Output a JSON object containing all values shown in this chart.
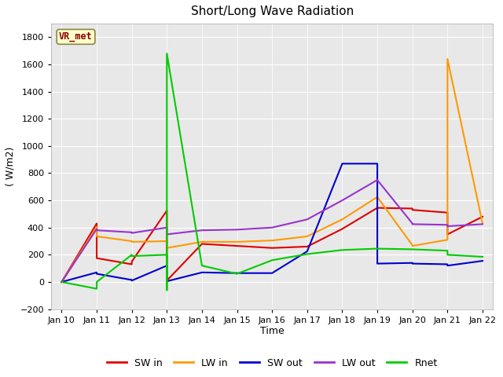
{
  "title": "Short/Long Wave Radiation",
  "xlabel": "Time",
  "ylabel": "( W/m2)",
  "ylim": [
    -200,
    1900
  ],
  "yticks": [
    -200,
    0,
    200,
    400,
    600,
    800,
    1000,
    1200,
    1400,
    1600,
    1800
  ],
  "plot_bg": "#e8e8e8",
  "fig_bg": "#ffffff",
  "annotation_text": "VR_met",
  "x_labels": [
    "Jan 10",
    "Jan 11",
    "Jan 12",
    "Jan 13",
    "Jan 14",
    "Jan 15",
    "Jan 16",
    "Jan 17",
    "Jan 18",
    "Jan 19",
    "Jan 20",
    "Jan 21",
    "Jan 22"
  ],
  "x_ticks": [
    0,
    1,
    2,
    3,
    4,
    5,
    6,
    7,
    8,
    9,
    10,
    11,
    12
  ],
  "xlim": [
    -0.3,
    12.3
  ],
  "series": {
    "SW in": {
      "color": "#dd0000",
      "x": [
        0,
        1,
        1,
        2,
        2,
        3,
        3,
        4,
        5,
        6,
        7,
        8,
        9,
        9,
        10,
        10,
        11,
        11,
        12
      ],
      "y": [
        0,
        430,
        175,
        130,
        150,
        525,
        10,
        280,
        265,
        250,
        260,
        390,
        545,
        545,
        540,
        530,
        510,
        350,
        480
      ]
    },
    "LW in": {
      "color": "#ff9900",
      "x": [
        0,
        1,
        1,
        2,
        2,
        3,
        3,
        3,
        4,
        5,
        6,
        7,
        8,
        9,
        9,
        10,
        10,
        11,
        11,
        12
      ],
      "y": [
        0,
        405,
        335,
        300,
        295,
        300,
        270,
        250,
        295,
        295,
        305,
        335,
        460,
        625,
        625,
        270,
        265,
        310,
        1640,
        430
      ]
    },
    "SW out": {
      "color": "#0000cc",
      "x": [
        0,
        1,
        1,
        2,
        2,
        3,
        3,
        3,
        4,
        5,
        6,
        7,
        8,
        9,
        9,
        10,
        10,
        11,
        11,
        12
      ],
      "y": [
        0,
        70,
        60,
        15,
        10,
        120,
        35,
        5,
        70,
        65,
        65,
        225,
        870,
        870,
        135,
        140,
        135,
        130,
        120,
        155
      ]
    },
    "LW out": {
      "color": "#9933cc",
      "x": [
        0,
        1,
        1,
        2,
        2,
        3,
        3,
        3,
        4,
        5,
        6,
        7,
        8,
        9,
        9,
        10,
        10,
        11,
        11,
        12
      ],
      "y": [
        0,
        390,
        380,
        365,
        360,
        400,
        390,
        350,
        380,
        385,
        400,
        460,
        600,
        750,
        750,
        430,
        425,
        420,
        410,
        425
      ]
    },
    "Rnet": {
      "color": "#00cc00",
      "x": [
        0,
        1,
        1,
        2,
        2,
        3,
        3,
        3,
        4,
        5,
        6,
        7,
        8,
        9,
        9,
        10,
        10,
        11,
        11,
        12
      ],
      "y": [
        0,
        -50,
        0,
        200,
        190,
        200,
        -60,
        1680,
        120,
        60,
        160,
        205,
        235,
        245,
        245,
        240,
        240,
        230,
        200,
        185
      ]
    }
  }
}
